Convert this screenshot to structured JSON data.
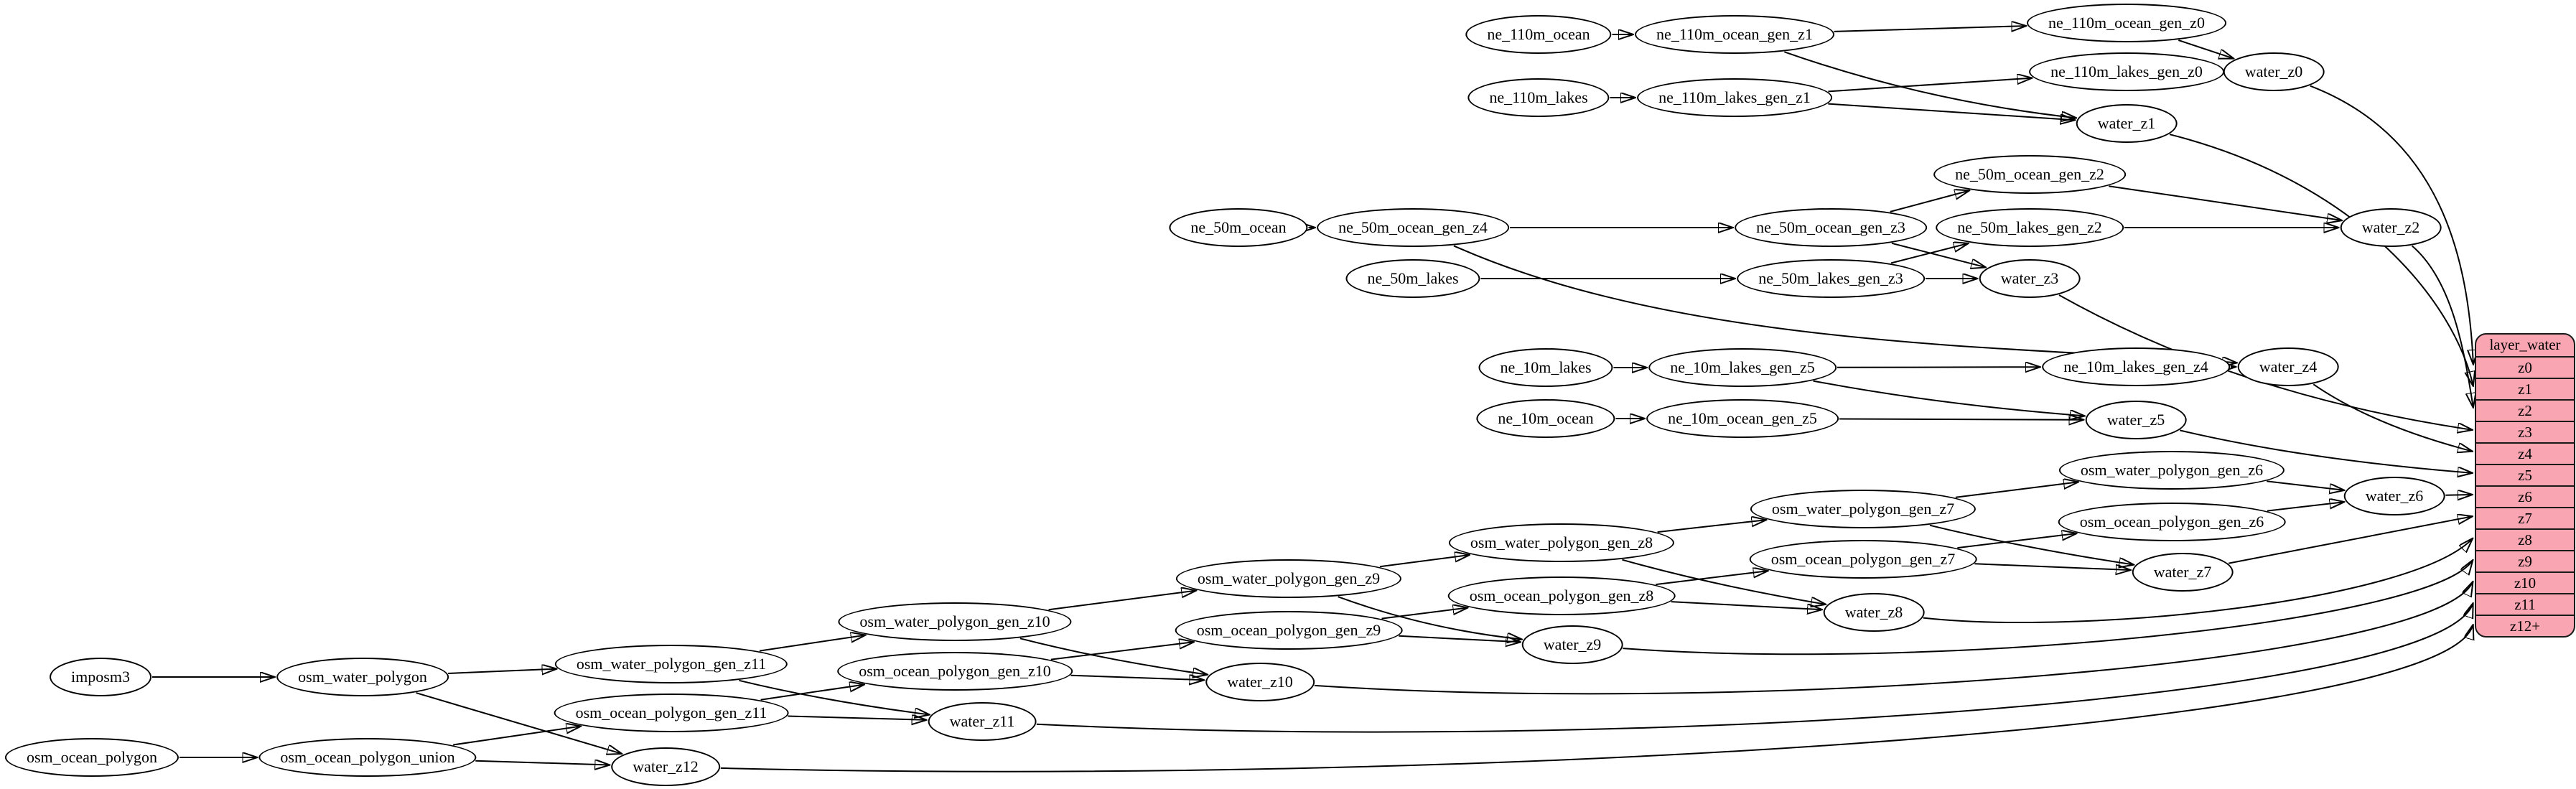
{
  "colors": {
    "background": "#ffffff",
    "node_fill": "#ffffff",
    "node_stroke": "#000000",
    "edge": "#000000",
    "table_fill": "#f9a6b2",
    "table_stroke": "#1a1a1a"
  },
  "table": {
    "title": "layer_water",
    "rows": [
      "z0",
      "z1",
      "z2",
      "z3",
      "z4",
      "z5",
      "z6",
      "z7",
      "z8",
      "z9",
      "z10",
      "z11",
      "z12+"
    ]
  },
  "graph": {
    "nodes": [
      {
        "id": "ne_110m_ocean",
        "label": "ne_110m_ocean"
      },
      {
        "id": "ne_110m_ocean_gen_z1",
        "label": "ne_110m_ocean_gen_z1"
      },
      {
        "id": "ne_110m_ocean_gen_z0",
        "label": "ne_110m_ocean_gen_z0"
      },
      {
        "id": "ne_110m_lakes",
        "label": "ne_110m_lakes"
      },
      {
        "id": "ne_110m_lakes_gen_z1",
        "label": "ne_110m_lakes_gen_z1"
      },
      {
        "id": "ne_110m_lakes_gen_z0",
        "label": "ne_110m_lakes_gen_z0"
      },
      {
        "id": "water_z0",
        "label": "water_z0"
      },
      {
        "id": "water_z1",
        "label": "water_z1"
      },
      {
        "id": "ne_50m_ocean",
        "label": "ne_50m_ocean"
      },
      {
        "id": "ne_50m_ocean_gen_z4",
        "label": "ne_50m_ocean_gen_z4"
      },
      {
        "id": "ne_50m_ocean_gen_z3",
        "label": "ne_50m_ocean_gen_z3"
      },
      {
        "id": "ne_50m_ocean_gen_z2",
        "label": "ne_50m_ocean_gen_z2"
      },
      {
        "id": "ne_50m_lakes",
        "label": "ne_50m_lakes"
      },
      {
        "id": "ne_50m_lakes_gen_z3",
        "label": "ne_50m_lakes_gen_z3"
      },
      {
        "id": "ne_50m_lakes_gen_z2",
        "label": "ne_50m_lakes_gen_z2"
      },
      {
        "id": "water_z2",
        "label": "water_z2"
      },
      {
        "id": "water_z3",
        "label": "water_z3"
      },
      {
        "id": "ne_10m_lakes",
        "label": "ne_10m_lakes"
      },
      {
        "id": "ne_10m_lakes_gen_z5",
        "label": "ne_10m_lakes_gen_z5"
      },
      {
        "id": "ne_10m_lakes_gen_z4",
        "label": "ne_10m_lakes_gen_z4"
      },
      {
        "id": "ne_10m_ocean",
        "label": "ne_10m_ocean"
      },
      {
        "id": "ne_10m_ocean_gen_z5",
        "label": "ne_10m_ocean_gen_z5"
      },
      {
        "id": "water_z4",
        "label": "water_z4"
      },
      {
        "id": "water_z5",
        "label": "water_z5"
      },
      {
        "id": "imposm3",
        "label": "imposm3"
      },
      {
        "id": "osm_water_polygon",
        "label": "osm_water_polygon"
      },
      {
        "id": "osm_ocean_polygon",
        "label": "osm_ocean_polygon"
      },
      {
        "id": "osm_ocean_polygon_union",
        "label": "osm_ocean_polygon_union"
      },
      {
        "id": "osm_water_polygon_gen_z11",
        "label": "osm_water_polygon_gen_z11"
      },
      {
        "id": "osm_ocean_polygon_gen_z11",
        "label": "osm_ocean_polygon_gen_z11"
      },
      {
        "id": "osm_water_polygon_gen_z10",
        "label": "osm_water_polygon_gen_z10"
      },
      {
        "id": "osm_ocean_polygon_gen_z10",
        "label": "osm_ocean_polygon_gen_z10"
      },
      {
        "id": "osm_water_polygon_gen_z9",
        "label": "osm_water_polygon_gen_z9"
      },
      {
        "id": "osm_ocean_polygon_gen_z9",
        "label": "osm_ocean_polygon_gen_z9"
      },
      {
        "id": "osm_water_polygon_gen_z8",
        "label": "osm_water_polygon_gen_z8"
      },
      {
        "id": "osm_ocean_polygon_gen_z8",
        "label": "osm_ocean_polygon_gen_z8"
      },
      {
        "id": "osm_water_polygon_gen_z7",
        "label": "osm_water_polygon_gen_z7"
      },
      {
        "id": "osm_ocean_polygon_gen_z7",
        "label": "osm_ocean_polygon_gen_z7"
      },
      {
        "id": "osm_water_polygon_gen_z6",
        "label": "osm_water_polygon_gen_z6"
      },
      {
        "id": "osm_ocean_polygon_gen_z6",
        "label": "osm_ocean_polygon_gen_z6"
      },
      {
        "id": "water_z6",
        "label": "water_z6"
      },
      {
        "id": "water_z7",
        "label": "water_z7"
      },
      {
        "id": "water_z8",
        "label": "water_z8"
      },
      {
        "id": "water_z9",
        "label": "water_z9"
      },
      {
        "id": "water_z10",
        "label": "water_z10"
      },
      {
        "id": "water_z11",
        "label": "water_z11"
      },
      {
        "id": "water_z12",
        "label": "water_z12"
      }
    ],
    "edges": [
      {
        "from": "ne_110m_ocean",
        "to": "ne_110m_ocean_gen_z1"
      },
      {
        "from": "ne_110m_lakes",
        "to": "ne_110m_lakes_gen_z1"
      },
      {
        "from": "ne_110m_ocean_gen_z1",
        "to": "ne_110m_ocean_gen_z0"
      },
      {
        "from": "ne_110m_lakes_gen_z1",
        "to": "ne_110m_lakes_gen_z0"
      },
      {
        "from": "ne_110m_ocean_gen_z1",
        "to": "water_z1"
      },
      {
        "from": "ne_110m_lakes_gen_z1",
        "to": "water_z1"
      },
      {
        "from": "ne_110m_ocean_gen_z0",
        "to": "water_z0"
      },
      {
        "from": "ne_110m_lakes_gen_z0",
        "to": "water_z0"
      },
      {
        "from": "water_z0",
        "to": "T:z0"
      },
      {
        "from": "water_z1",
        "to": "T:z1"
      },
      {
        "from": "ne_50m_ocean",
        "to": "ne_50m_ocean_gen_z4"
      },
      {
        "from": "ne_50m_ocean_gen_z4",
        "to": "ne_50m_ocean_gen_z3"
      },
      {
        "from": "ne_50m_ocean_gen_z4",
        "to": "water_z4"
      },
      {
        "from": "ne_50m_lakes",
        "to": "ne_50m_lakes_gen_z3"
      },
      {
        "from": "ne_50m_ocean_gen_z3",
        "to": "ne_50m_ocean_gen_z2"
      },
      {
        "from": "ne_50m_ocean_gen_z3",
        "to": "water_z3"
      },
      {
        "from": "ne_50m_lakes_gen_z3",
        "to": "ne_50m_lakes_gen_z2"
      },
      {
        "from": "ne_50m_lakes_gen_z3",
        "to": "water_z3"
      },
      {
        "from": "ne_50m_ocean_gen_z2",
        "to": "water_z2"
      },
      {
        "from": "ne_50m_lakes_gen_z2",
        "to": "water_z2"
      },
      {
        "from": "water_z2",
        "to": "T:z2"
      },
      {
        "from": "water_z3",
        "to": "T:z3"
      },
      {
        "from": "ne_10m_lakes",
        "to": "ne_10m_lakes_gen_z5"
      },
      {
        "from": "ne_10m_ocean",
        "to": "ne_10m_ocean_gen_z5"
      },
      {
        "from": "ne_10m_lakes_gen_z5",
        "to": "ne_10m_lakes_gen_z4"
      },
      {
        "from": "ne_10m_lakes_gen_z5",
        "to": "water_z5"
      },
      {
        "from": "ne_10m_ocean_gen_z5",
        "to": "water_z5"
      },
      {
        "from": "ne_10m_lakes_gen_z4",
        "to": "water_z4"
      },
      {
        "from": "water_z4",
        "to": "T:z4"
      },
      {
        "from": "water_z5",
        "to": "T:z5"
      },
      {
        "from": "imposm3",
        "to": "osm_water_polygon"
      },
      {
        "from": "osm_water_polygon",
        "to": "osm_water_polygon_gen_z11"
      },
      {
        "from": "osm_water_polygon",
        "to": "water_z12"
      },
      {
        "from": "osm_ocean_polygon",
        "to": "osm_ocean_polygon_union"
      },
      {
        "from": "osm_ocean_polygon_union",
        "to": "osm_ocean_polygon_gen_z11"
      },
      {
        "from": "osm_ocean_polygon_union",
        "to": "water_z12"
      },
      {
        "from": "osm_water_polygon_gen_z11",
        "to": "osm_water_polygon_gen_z10"
      },
      {
        "from": "osm_water_polygon_gen_z11",
        "to": "water_z11"
      },
      {
        "from": "osm_ocean_polygon_gen_z11",
        "to": "osm_ocean_polygon_gen_z10"
      },
      {
        "from": "osm_ocean_polygon_gen_z11",
        "to": "water_z11"
      },
      {
        "from": "osm_water_polygon_gen_z10",
        "to": "osm_water_polygon_gen_z9"
      },
      {
        "from": "osm_water_polygon_gen_z10",
        "to": "water_z10"
      },
      {
        "from": "osm_ocean_polygon_gen_z10",
        "to": "osm_ocean_polygon_gen_z9"
      },
      {
        "from": "osm_ocean_polygon_gen_z10",
        "to": "water_z10"
      },
      {
        "from": "osm_water_polygon_gen_z9",
        "to": "osm_water_polygon_gen_z8"
      },
      {
        "from": "osm_water_polygon_gen_z9",
        "to": "water_z9"
      },
      {
        "from": "osm_ocean_polygon_gen_z9",
        "to": "osm_ocean_polygon_gen_z8"
      },
      {
        "from": "osm_ocean_polygon_gen_z9",
        "to": "water_z9"
      },
      {
        "from": "osm_water_polygon_gen_z8",
        "to": "osm_water_polygon_gen_z7"
      },
      {
        "from": "osm_water_polygon_gen_z8",
        "to": "water_z8"
      },
      {
        "from": "osm_ocean_polygon_gen_z8",
        "to": "osm_ocean_polygon_gen_z7"
      },
      {
        "from": "osm_ocean_polygon_gen_z8",
        "to": "water_z8"
      },
      {
        "from": "osm_water_polygon_gen_z7",
        "to": "osm_water_polygon_gen_z6"
      },
      {
        "from": "osm_water_polygon_gen_z7",
        "to": "water_z7"
      },
      {
        "from": "osm_ocean_polygon_gen_z7",
        "to": "osm_ocean_polygon_gen_z6"
      },
      {
        "from": "osm_ocean_polygon_gen_z7",
        "to": "water_z7"
      },
      {
        "from": "osm_water_polygon_gen_z6",
        "to": "water_z6"
      },
      {
        "from": "osm_ocean_polygon_gen_z6",
        "to": "water_z6"
      },
      {
        "from": "water_z6",
        "to": "T:z6"
      },
      {
        "from": "water_z7",
        "to": "T:z7"
      },
      {
        "from": "water_z8",
        "to": "T:z8"
      },
      {
        "from": "water_z9",
        "to": "T:z9"
      },
      {
        "from": "water_z10",
        "to": "T:z10"
      },
      {
        "from": "water_z11",
        "to": "T:z11"
      },
      {
        "from": "water_z12",
        "to": "T:z12+"
      }
    ]
  }
}
